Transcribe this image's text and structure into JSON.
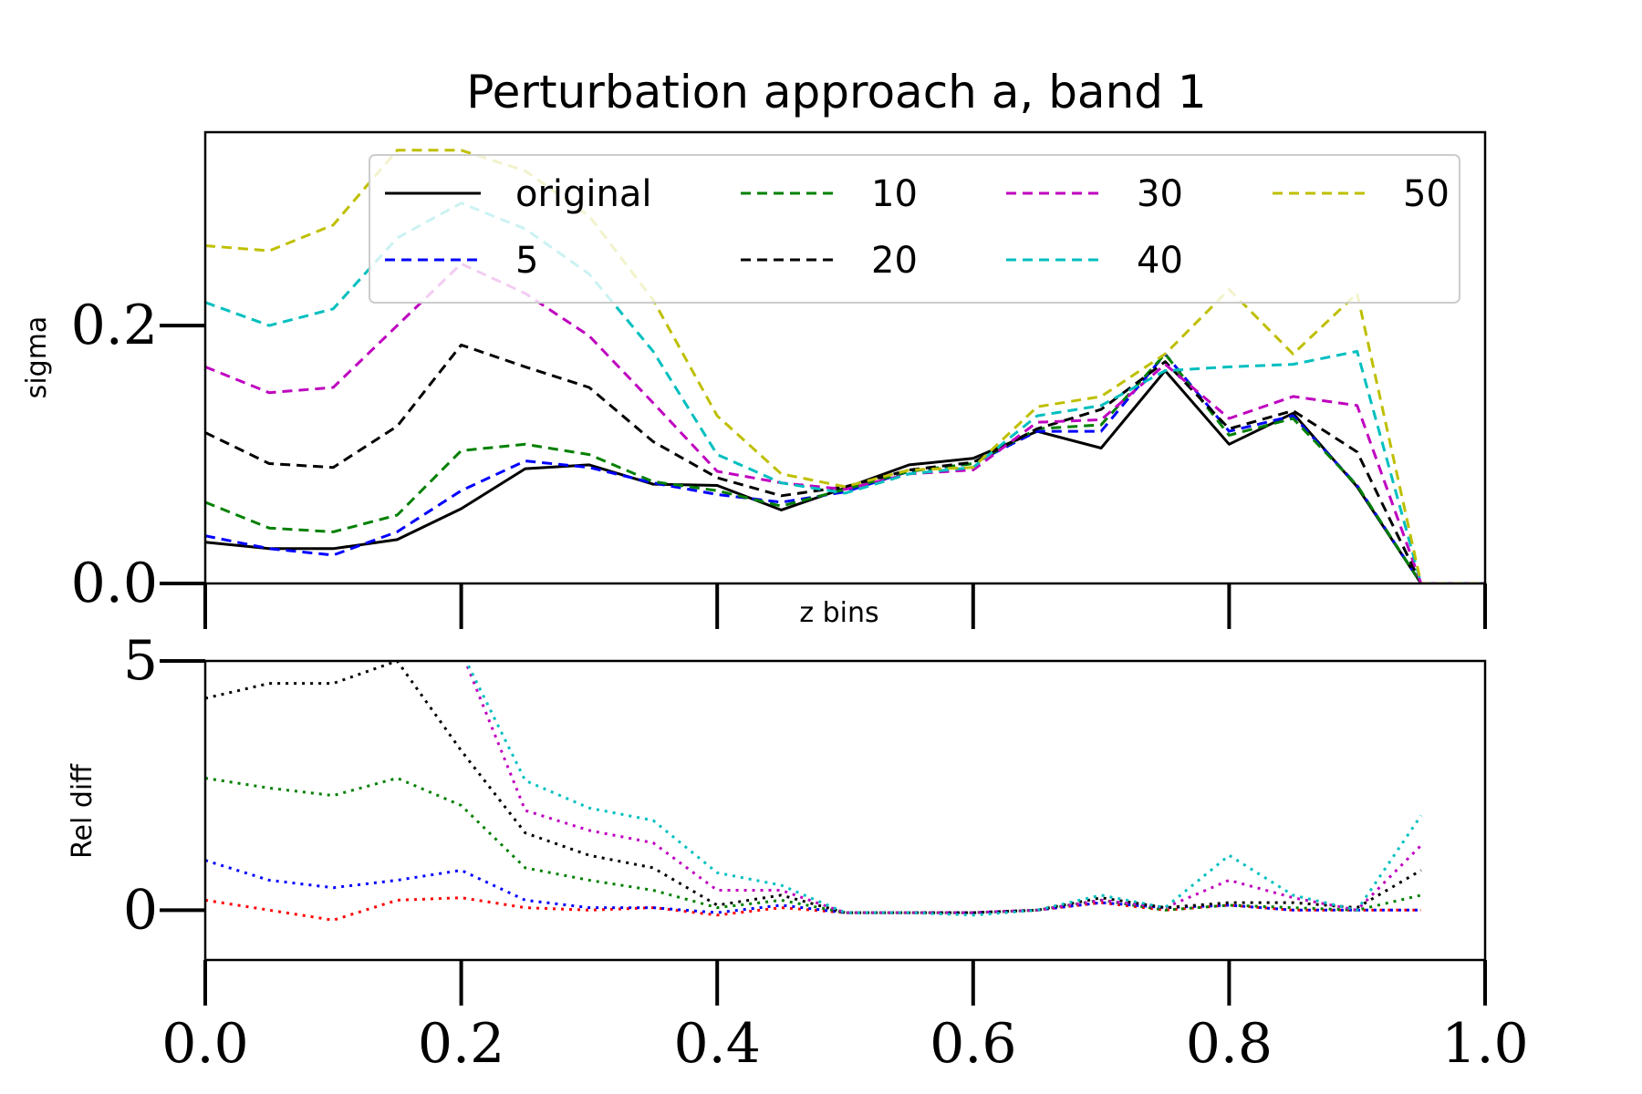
{
  "chart_data": [
    {
      "type": "line",
      "title": "Perturbation approach a, band 1",
      "xlabel": "z bins",
      "ylabel": "sigma",
      "xlim": [
        0.0,
        1.0
      ],
      "ylim": [
        0.0,
        0.35
      ],
      "yticks": [
        0.0,
        0.2
      ],
      "ytick_labels": [
        "0.0",
        "0.2"
      ],
      "legend": {
        "placement": "top",
        "columns": 4
      },
      "x": [
        0.0,
        0.05,
        0.1,
        0.15,
        0.2,
        0.25,
        0.3,
        0.35,
        0.4,
        0.45,
        0.5,
        0.55,
        0.6,
        0.65,
        0.7,
        0.75,
        0.8,
        0.85,
        0.9,
        0.95,
        1.0
      ],
      "series": [
        {
          "name": "original",
          "color": "#000000",
          "style": "solid",
          "values": [
            0.032,
            0.027,
            0.027,
            0.034,
            0.058,
            0.089,
            0.092,
            0.077,
            0.076,
            0.057,
            0.074,
            0.092,
            0.097,
            0.118,
            0.105,
            0.165,
            0.108,
            0.132,
            0.075,
            0.0,
            0.0
          ]
        },
        {
          "name": "5",
          "color": "#0000ff",
          "style": "dashed",
          "values": [
            0.037,
            0.027,
            0.022,
            0.04,
            0.072,
            0.095,
            0.09,
            0.078,
            0.069,
            0.063,
            0.071,
            0.087,
            0.093,
            0.118,
            0.118,
            0.178,
            0.118,
            0.13,
            0.076,
            0.0,
            0.0
          ]
        },
        {
          "name": "10",
          "color": "#008000",
          "style": "dashed",
          "values": [
            0.063,
            0.043,
            0.04,
            0.053,
            0.103,
            0.108,
            0.1,
            0.079,
            0.072,
            0.06,
            0.073,
            0.087,
            0.093,
            0.12,
            0.123,
            0.178,
            0.115,
            0.128,
            0.076,
            0.0,
            0.0
          ]
        },
        {
          "name": "20",
          "color": "#000000",
          "style": "dashed",
          "values": [
            0.117,
            0.093,
            0.09,
            0.122,
            0.185,
            0.168,
            0.152,
            0.11,
            0.082,
            0.068,
            0.075,
            0.088,
            0.094,
            0.12,
            0.135,
            0.172,
            0.12,
            0.134,
            0.102,
            0.0,
            0.0
          ]
        },
        {
          "name": "30",
          "color": "#bf00bf",
          "style": "dashed",
          "values": [
            0.168,
            0.148,
            0.152,
            0.2,
            0.248,
            0.225,
            0.192,
            0.14,
            0.087,
            0.078,
            0.073,
            0.085,
            0.088,
            0.125,
            0.127,
            0.17,
            0.128,
            0.145,
            0.138,
            0.0,
            0.0
          ]
        },
        {
          "name": "40",
          "color": "#00bfbf",
          "style": "dashed",
          "values": [
            0.218,
            0.2,
            0.213,
            0.268,
            0.295,
            0.275,
            0.24,
            0.18,
            0.1,
            0.078,
            0.07,
            0.085,
            0.09,
            0.13,
            0.138,
            0.165,
            0.168,
            0.17,
            0.18,
            0.0,
            0.0
          ]
        },
        {
          "name": "50",
          "color": "#bfbf00",
          "style": "dashed",
          "values": [
            0.262,
            0.258,
            0.278,
            0.336,
            0.336,
            0.32,
            0.285,
            0.22,
            0.13,
            0.085,
            0.075,
            0.088,
            0.09,
            0.137,
            0.145,
            0.178,
            0.228,
            0.178,
            0.225,
            0.0,
            0.0
          ]
        }
      ]
    },
    {
      "type": "line",
      "xlabel": "",
      "ylabel": "Rel diff",
      "xlim": [
        0.0,
        1.0
      ],
      "ylim": [
        -1.0,
        5.0
      ],
      "yticks": [
        0,
        5
      ],
      "ytick_labels": [
        "0",
        "5"
      ],
      "xticks": [
        0.0,
        0.2,
        0.4,
        0.6,
        0.8,
        1.0
      ],
      "xtick_labels": [
        "0.0",
        "0.2",
        "0.4",
        "0.6",
        "0.8",
        "1.0"
      ],
      "x": [
        0.0,
        0.05,
        0.1,
        0.15,
        0.2,
        0.25,
        0.3,
        0.35,
        0.4,
        0.45,
        0.5,
        0.55,
        0.6,
        0.65,
        0.7,
        0.75,
        0.8,
        0.85,
        0.9,
        0.95
      ],
      "series": [
        {
          "color": "#ff0000",
          "style": "dotted",
          "values": [
            0.2,
            0.0,
            -0.2,
            0.2,
            0.25,
            0.05,
            0.0,
            0.05,
            -0.1,
            0.05,
            -0.05,
            -0.05,
            -0.05,
            0.0,
            0.15,
            0.0,
            0.1,
            0.0,
            0.0,
            0.0
          ]
        },
        {
          "color": "#0000ff",
          "style": "dotted",
          "values": [
            1.0,
            0.6,
            0.45,
            0.6,
            0.8,
            0.2,
            0.05,
            0.05,
            -0.05,
            0.1,
            -0.05,
            -0.05,
            -0.05,
            0.0,
            0.15,
            0.05,
            0.1,
            0.0,
            0.0,
            0.0
          ]
        },
        {
          "color": "#008000",
          "style": "dotted",
          "values": [
            2.65,
            2.45,
            2.3,
            2.65,
            2.1,
            0.85,
            0.6,
            0.4,
            0.05,
            0.2,
            -0.05,
            -0.05,
            -0.05,
            0.0,
            0.2,
            0.0,
            0.1,
            0.05,
            0.0,
            0.3
          ]
        },
        {
          "color": "#000000",
          "style": "dotted",
          "values": [
            4.25,
            4.55,
            4.55,
            5.0,
            3.2,
            1.55,
            1.1,
            0.85,
            0.1,
            0.3,
            -0.05,
            -0.05,
            -0.05,
            0.0,
            0.25,
            0.05,
            0.15,
            0.15,
            0.05,
            0.8
          ]
        },
        {
          "color": "#bf00bf",
          "style": "dotted",
          "values": [
            null,
            null,
            null,
            null,
            5.2,
            2.0,
            1.6,
            1.35,
            0.4,
            0.4,
            -0.05,
            -0.05,
            -0.05,
            0.0,
            0.2,
            0.05,
            0.6,
            0.25,
            0.0,
            1.3
          ]
        },
        {
          "color": "#00bfbf",
          "style": "dotted",
          "values": [
            null,
            null,
            null,
            null,
            5.2,
            2.6,
            2.05,
            1.8,
            0.75,
            0.5,
            -0.05,
            -0.05,
            -0.1,
            0.0,
            0.3,
            0.05,
            1.1,
            0.3,
            0.0,
            1.9
          ]
        }
      ]
    }
  ]
}
